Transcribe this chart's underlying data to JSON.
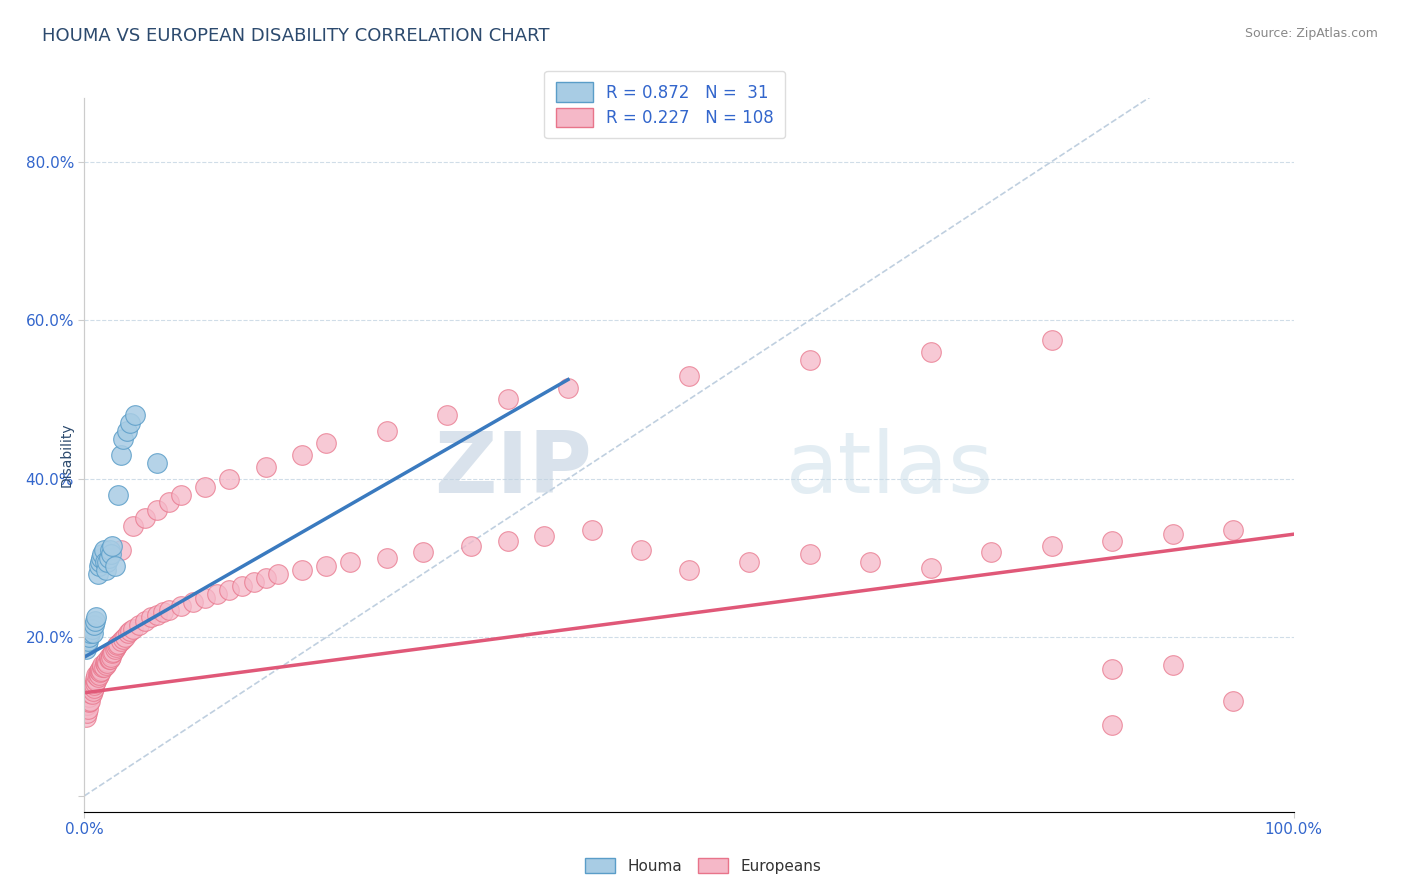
{
  "title": "HOUMA VS EUROPEAN DISABILITY CORRELATION CHART",
  "source_text": "Source: ZipAtlas.com",
  "ylabel": "Disability",
  "watermark_zip": "ZIP",
  "watermark_atlas": "atlas",
  "legend_houma_label": "Houma",
  "legend_europeans_label": "Europeans",
  "r_houma": 0.872,
  "n_houma": 31,
  "r_europeans": 0.227,
  "n_europeans": 108,
  "houma_color": "#a8cce4",
  "europeans_color": "#f5b8c8",
  "houma_edge_color": "#5a9dc8",
  "europeans_edge_color": "#e8748a",
  "houma_line_color": "#3a7abf",
  "europeans_line_color": "#e05878",
  "ref_line_color": "#b0c4d8",
  "grid_color": "#d0dde8",
  "background_color": "#ffffff",
  "title_color": "#2c4a6e",
  "tick_color": "#3366cc",
  "houma_x": [
    0.001,
    0.002,
    0.003,
    0.004,
    0.005,
    0.006,
    0.007,
    0.008,
    0.009,
    0.01,
    0.011,
    0.012,
    0.013,
    0.014,
    0.015,
    0.016,
    0.017,
    0.018,
    0.019,
    0.02,
    0.021,
    0.022,
    0.023,
    0.025,
    0.028,
    0.03,
    0.032,
    0.035,
    0.038,
    0.042,
    0.06
  ],
  "houma_y": [
    0.185,
    0.19,
    0.195,
    0.2,
    0.205,
    0.21,
    0.205,
    0.215,
    0.22,
    0.225,
    0.28,
    0.29,
    0.295,
    0.3,
    0.305,
    0.31,
    0.295,
    0.285,
    0.295,
    0.3,
    0.31,
    0.305,
    0.315,
    0.29,
    0.38,
    0.43,
    0.45,
    0.46,
    0.47,
    0.48,
    0.42
  ],
  "europeans_x": [
    0.001,
    0.002,
    0.002,
    0.003,
    0.003,
    0.004,
    0.004,
    0.005,
    0.005,
    0.006,
    0.006,
    0.007,
    0.007,
    0.008,
    0.008,
    0.009,
    0.009,
    0.01,
    0.01,
    0.011,
    0.011,
    0.012,
    0.012,
    0.013,
    0.013,
    0.014,
    0.015,
    0.015,
    0.016,
    0.017,
    0.018,
    0.018,
    0.019,
    0.02,
    0.02,
    0.021,
    0.022,
    0.022,
    0.023,
    0.024,
    0.025,
    0.026,
    0.027,
    0.028,
    0.03,
    0.032,
    0.034,
    0.036,
    0.038,
    0.04,
    0.045,
    0.05,
    0.055,
    0.06,
    0.065,
    0.07,
    0.08,
    0.09,
    0.1,
    0.11,
    0.12,
    0.13,
    0.14,
    0.15,
    0.16,
    0.18,
    0.2,
    0.22,
    0.25,
    0.28,
    0.32,
    0.35,
    0.38,
    0.42,
    0.46,
    0.5,
    0.55,
    0.6,
    0.65,
    0.7,
    0.75,
    0.8,
    0.85,
    0.9,
    0.95,
    0.03,
    0.04,
    0.05,
    0.06,
    0.07,
    0.08,
    0.1,
    0.12,
    0.15,
    0.18,
    0.2,
    0.25,
    0.3,
    0.35,
    0.4,
    0.5,
    0.6,
    0.7,
    0.8,
    0.85,
    0.9,
    0.85,
    0.95
  ],
  "europeans_y": [
    0.1,
    0.105,
    0.115,
    0.11,
    0.12,
    0.118,
    0.125,
    0.12,
    0.13,
    0.128,
    0.135,
    0.132,
    0.138,
    0.136,
    0.14,
    0.142,
    0.148,
    0.145,
    0.152,
    0.15,
    0.155,
    0.153,
    0.158,
    0.156,
    0.16,
    0.158,
    0.162,
    0.165,
    0.163,
    0.167,
    0.165,
    0.17,
    0.168,
    0.172,
    0.175,
    0.173,
    0.178,
    0.175,
    0.18,
    0.182,
    0.185,
    0.188,
    0.19,
    0.192,
    0.195,
    0.198,
    0.2,
    0.205,
    0.208,
    0.21,
    0.215,
    0.22,
    0.225,
    0.228,
    0.232,
    0.235,
    0.24,
    0.245,
    0.25,
    0.255,
    0.26,
    0.265,
    0.27,
    0.275,
    0.28,
    0.285,
    0.29,
    0.295,
    0.3,
    0.308,
    0.315,
    0.322,
    0.328,
    0.335,
    0.31,
    0.285,
    0.295,
    0.305,
    0.295,
    0.288,
    0.308,
    0.315,
    0.322,
    0.33,
    0.335,
    0.31,
    0.34,
    0.35,
    0.36,
    0.37,
    0.38,
    0.39,
    0.4,
    0.415,
    0.43,
    0.445,
    0.46,
    0.48,
    0.5,
    0.515,
    0.53,
    0.55,
    0.56,
    0.575,
    0.16,
    0.165,
    0.09,
    0.12
  ],
  "houma_line_x": [
    0.0,
    0.4
  ],
  "houma_line_y": [
    0.175,
    0.525
  ],
  "europeans_line_x": [
    0.0,
    1.0
  ],
  "europeans_line_y": [
    0.13,
    0.33
  ],
  "xlim": [
    0.0,
    1.0
  ],
  "ylim": [
    -0.02,
    0.88
  ],
  "yticks": [
    0.0,
    0.2,
    0.4,
    0.6,
    0.8
  ],
  "ytick_labels": [
    "",
    "20.0%",
    "40.0%",
    "60.0%",
    "80.0%"
  ],
  "title_fontsize": 13,
  "axis_label_fontsize": 10,
  "tick_fontsize": 11
}
